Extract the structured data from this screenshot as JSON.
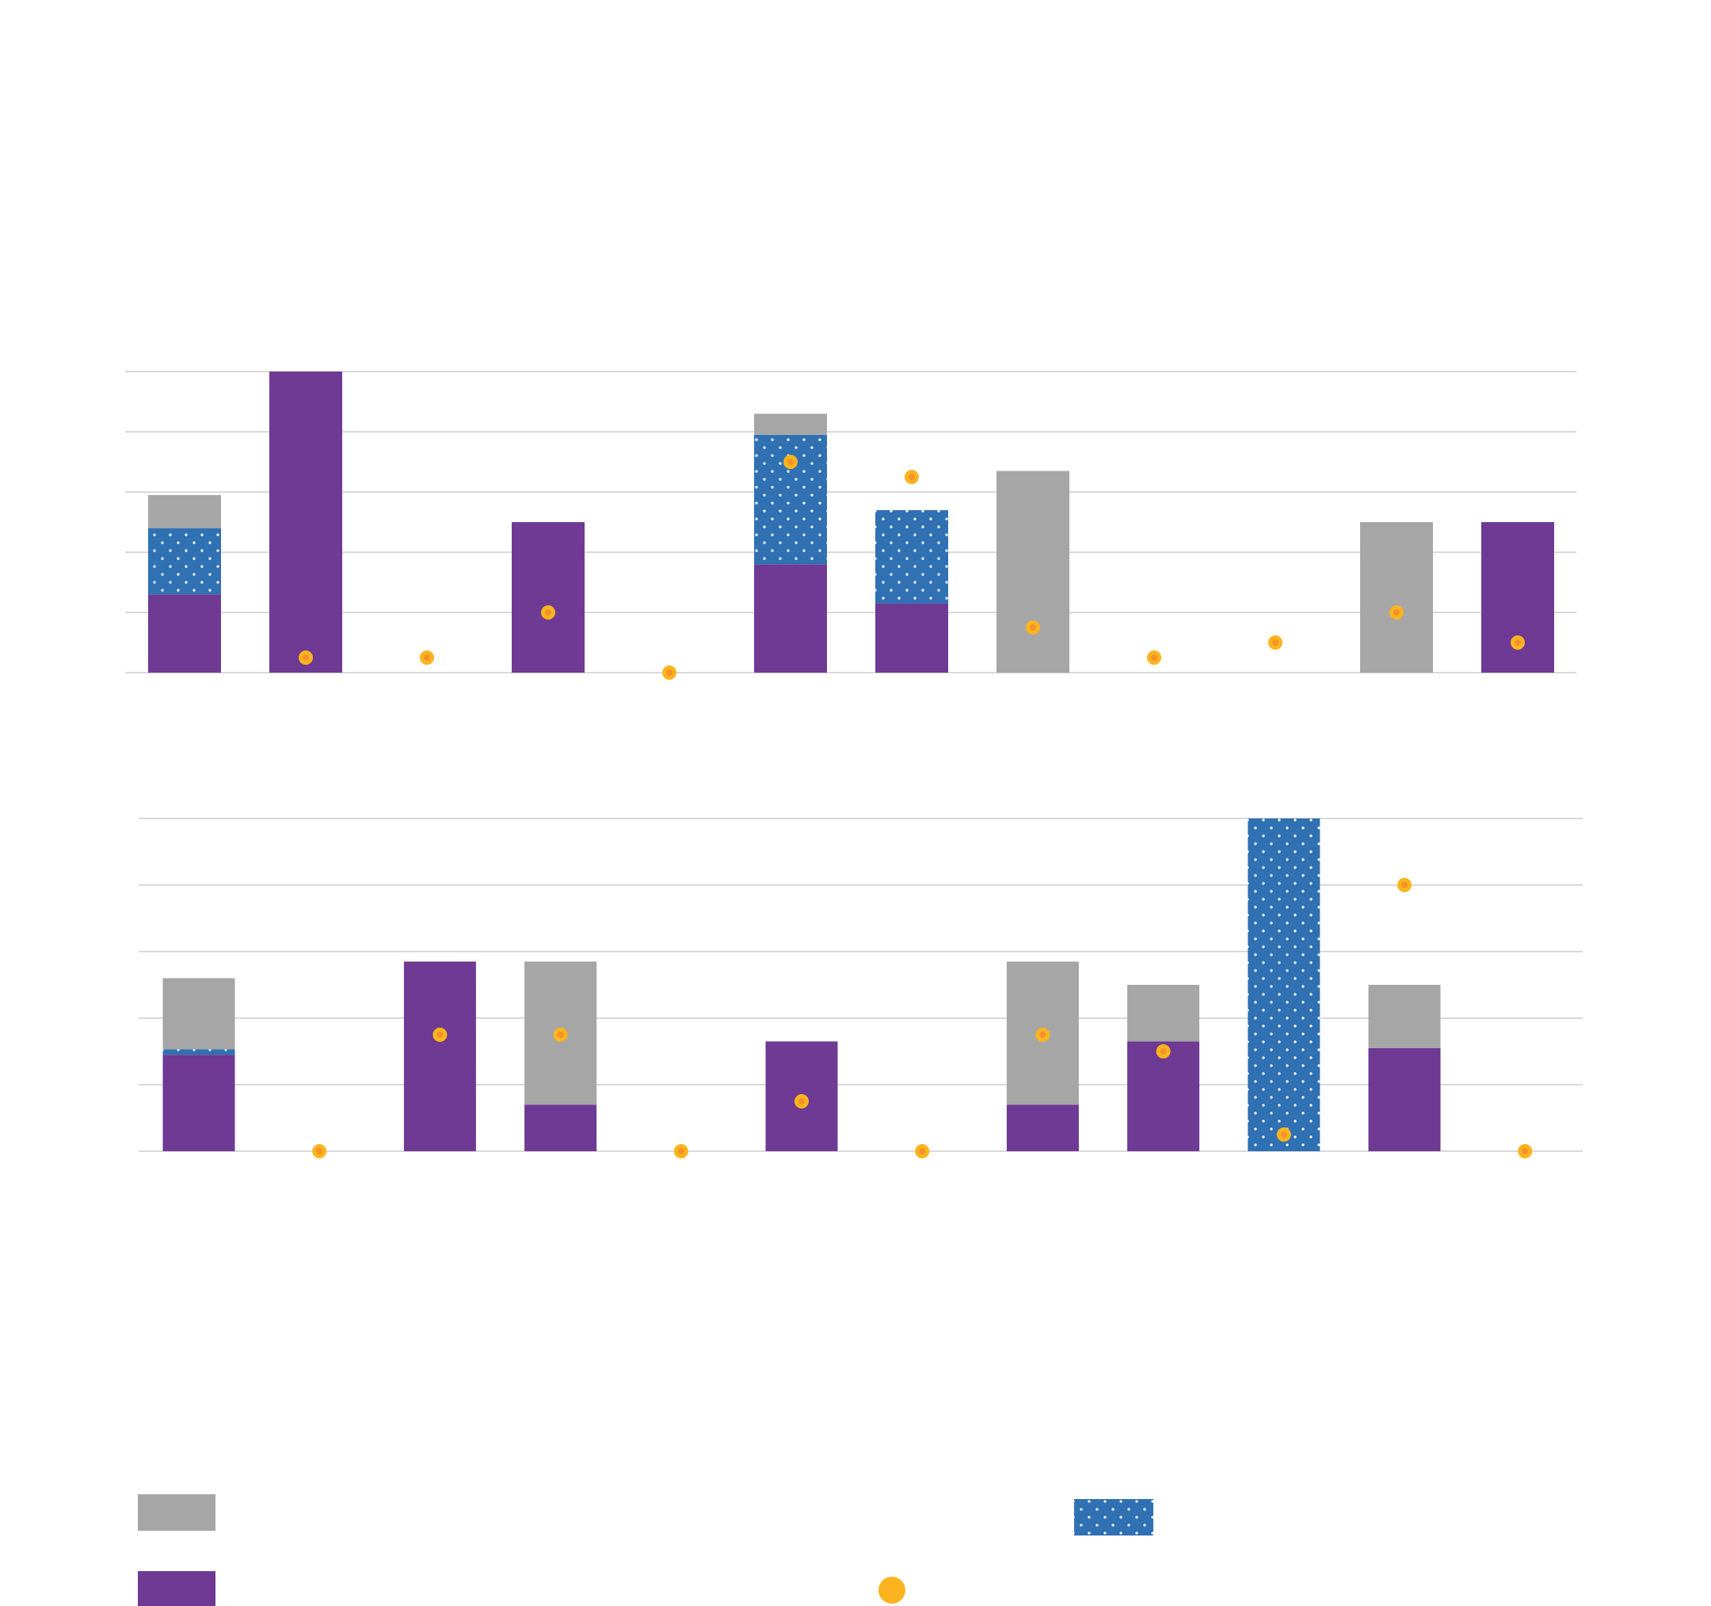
{
  "colors": {
    "grey": "#A7A6A7",
    "purple": "#6E3A93",
    "blue": "#3071B3",
    "dot_fill": "#FBB41D",
    "dot_center": "#F4922A",
    "grid": "#D9D9D9"
  },
  "legend": {
    "grey_label": "",
    "purple_label": "",
    "blue_label": "",
    "marker_label": ""
  },
  "chart_data": [
    {
      "type": "bar",
      "stacked": true,
      "ylim": [
        0,
        5
      ],
      "gridlines": [
        0,
        1,
        2,
        3,
        4,
        5
      ],
      "grid": true,
      "categories": [
        "",
        "",
        "",
        "",
        "",
        "",
        "",
        "",
        "",
        "",
        "",
        ""
      ],
      "series": [
        {
          "key": "purple",
          "color": "#6E3A93",
          "pattern": "solid",
          "values": [
            1.3,
            5.0,
            0,
            2.5,
            0,
            1.8,
            1.15,
            0,
            0,
            0,
            0,
            2.5
          ]
        },
        {
          "key": "blue",
          "color": "#3071B3",
          "pattern": "dotted",
          "values": [
            1.1,
            0,
            0,
            0,
            0,
            2.15,
            1.55,
            0,
            0,
            0,
            0,
            0
          ]
        },
        {
          "key": "grey",
          "color": "#A7A6A7",
          "pattern": "solid",
          "values": [
            0.55,
            0,
            0,
            0,
            0,
            0.35,
            0,
            3.35,
            0,
            0,
            2.5,
            0
          ]
        }
      ],
      "markers": [
        null,
        0.25,
        0.25,
        1.0,
        0.0,
        3.5,
        3.25,
        0.75,
        0.25,
        0.5,
        1.0,
        0.5
      ]
    },
    {
      "type": "bar",
      "stacked": true,
      "ylim": [
        0,
        5
      ],
      "gridlines": [
        0,
        1,
        2,
        3,
        4,
        5
      ],
      "grid": true,
      "categories": [
        "",
        "",
        "",
        "",
        "",
        "",
        "",
        "",
        "",
        "",
        "",
        ""
      ],
      "series": [
        {
          "key": "purple",
          "color": "#6E3A93",
          "pattern": "solid",
          "values": [
            1.45,
            0,
            2.85,
            0.7,
            0,
            1.65,
            0,
            0.7,
            1.65,
            0,
            1.55,
            0
          ]
        },
        {
          "key": "blue",
          "color": "#3071B3",
          "pattern": "dotted",
          "values": [
            0.08,
            0,
            0,
            0,
            0,
            0,
            0,
            0,
            0,
            5.0,
            0,
            0
          ]
        },
        {
          "key": "grey",
          "color": "#A7A6A7",
          "pattern": "solid",
          "values": [
            1.07,
            0,
            0,
            2.15,
            0,
            0,
            0,
            2.15,
            0.85,
            0,
            0.95,
            0
          ]
        }
      ],
      "markers": [
        null,
        0.0,
        1.75,
        1.75,
        0.0,
        0.75,
        0.0,
        1.75,
        1.5,
        0.25,
        4.0,
        0.0
      ]
    }
  ]
}
